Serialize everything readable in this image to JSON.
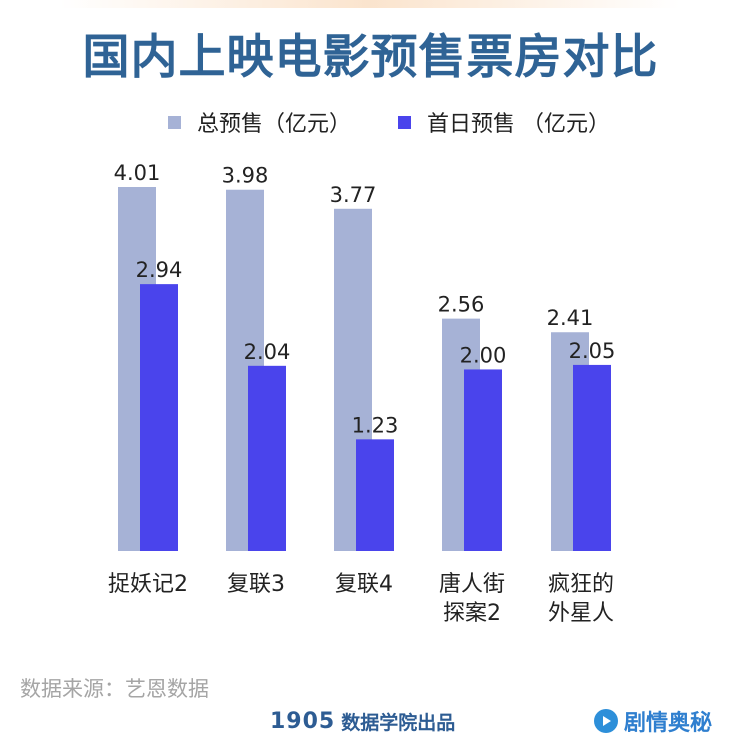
{
  "title": "国内上映电影预售票房对比",
  "legend": {
    "total_label": "总预售（亿元）",
    "first_day_label": "首日预售 （亿元）"
  },
  "colors": {
    "total": "#a6b2d6",
    "first_day": "#4a44ec",
    "title": "#2f6395"
  },
  "chart_data": {
    "type": "bar",
    "title": "国内上映电影预售票房对比",
    "categories": [
      [
        "捉妖记2"
      ],
      [
        "复联3"
      ],
      [
        "复联4"
      ],
      [
        "唐人街",
        "探案2"
      ],
      [
        "疯狂的",
        "外星人"
      ]
    ],
    "series": [
      {
        "name": "总预售（亿元）",
        "values": [
          4.01,
          3.98,
          3.77,
          2.56,
          2.41
        ],
        "labels": [
          "4.01",
          "3.98",
          "3.77",
          "2.56",
          "2.41"
        ]
      },
      {
        "name": "首日预售 （亿元）",
        "values": [
          2.94,
          2.04,
          1.23,
          2.0,
          2.05
        ],
        "labels": [
          "2.94",
          "2.04",
          "1.23",
          "2.00",
          "2.05"
        ]
      }
    ],
    "ylim": [
      0,
      4.5
    ],
    "grid": false,
    "legend_position": "top"
  },
  "footer": {
    "source": "数据来源：艺恩数据",
    "brand_num": "1905",
    "brand_text": "数据学院出品",
    "watermark": "剧情奥秘"
  }
}
